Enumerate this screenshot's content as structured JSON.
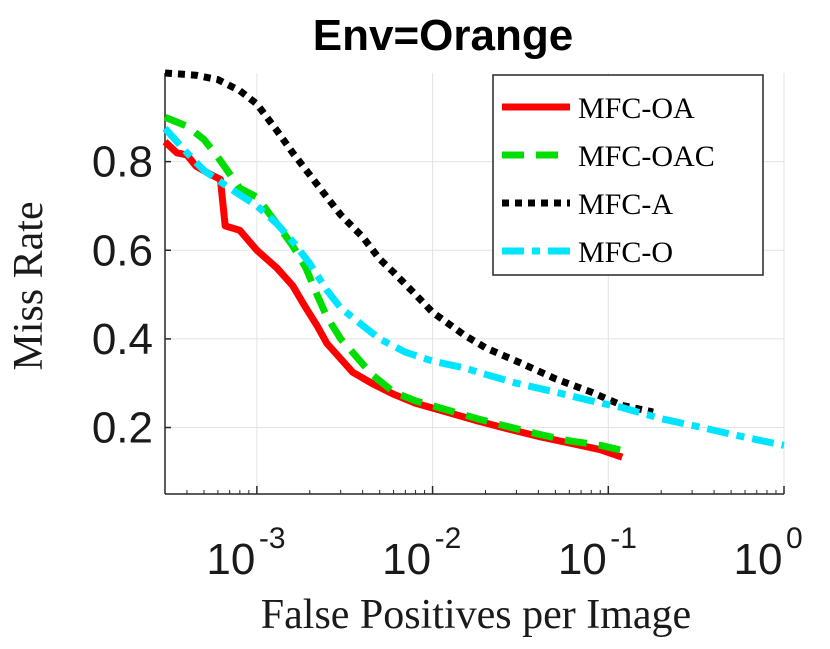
{
  "chart_data": {
    "type": "line",
    "title": "Env=Orange",
    "xlabel": "False Positives per Image",
    "ylabel": "Miss Rate",
    "xscale": "log",
    "xlim": [
      0.0003,
      1
    ],
    "ylim": [
      0.05,
      1.0
    ],
    "yticks": [
      {
        "value": 0.2,
        "label": "0.2"
      },
      {
        "value": 0.4,
        "label": "0.4"
      },
      {
        "value": 0.6,
        "label": "0.6"
      },
      {
        "value": 0.8,
        "label": "0.8"
      }
    ],
    "xticks": [
      {
        "value": 0.001,
        "base": "10",
        "exp": "-3"
      },
      {
        "value": 0.01,
        "base": "10",
        "exp": "-2"
      },
      {
        "value": 0.1,
        "base": "10",
        "exp": "-1"
      },
      {
        "value": 1,
        "base": "10",
        "exp": "0"
      }
    ],
    "grid": true,
    "legend_position": "top-right",
    "series": [
      {
        "name": "MFC-OA",
        "color": "#ff0000",
        "style": "solid",
        "points": [
          [
            0.0003,
            0.845
          ],
          [
            0.00035,
            0.82
          ],
          [
            0.0004,
            0.815
          ],
          [
            0.00045,
            0.79
          ],
          [
            0.00055,
            0.77
          ],
          [
            0.00062,
            0.76
          ],
          [
            0.00066,
            0.655
          ],
          [
            0.0008,
            0.645
          ],
          [
            0.001,
            0.6
          ],
          [
            0.0013,
            0.56
          ],
          [
            0.0016,
            0.52
          ],
          [
            0.0019,
            0.47
          ],
          [
            0.0022,
            0.43
          ],
          [
            0.0025,
            0.39
          ],
          [
            0.003,
            0.355
          ],
          [
            0.0035,
            0.325
          ],
          [
            0.0045,
            0.3
          ],
          [
            0.006,
            0.275
          ],
          [
            0.008,
            0.255
          ],
          [
            0.012,
            0.235
          ],
          [
            0.018,
            0.215
          ],
          [
            0.025,
            0.2
          ],
          [
            0.04,
            0.18
          ],
          [
            0.06,
            0.165
          ],
          [
            0.09,
            0.15
          ],
          [
            0.12,
            0.133
          ]
        ]
      },
      {
        "name": "MFC-OAC",
        "color": "#00dd00",
        "style": "dashed",
        "points": [
          [
            0.0003,
            0.9
          ],
          [
            0.0004,
            0.88
          ],
          [
            0.0005,
            0.85
          ],
          [
            0.0006,
            0.81
          ],
          [
            0.0008,
            0.74
          ],
          [
            0.001,
            0.72
          ],
          [
            0.0013,
            0.66
          ],
          [
            0.0016,
            0.61
          ],
          [
            0.0019,
            0.56
          ],
          [
            0.0022,
            0.5
          ],
          [
            0.0025,
            0.45
          ],
          [
            0.003,
            0.4
          ],
          [
            0.0035,
            0.37
          ],
          [
            0.0045,
            0.32
          ],
          [
            0.006,
            0.28
          ],
          [
            0.008,
            0.26
          ],
          [
            0.012,
            0.24
          ],
          [
            0.018,
            0.22
          ],
          [
            0.025,
            0.205
          ],
          [
            0.04,
            0.185
          ],
          [
            0.06,
            0.17
          ],
          [
            0.09,
            0.16
          ],
          [
            0.13,
            0.145
          ]
        ]
      },
      {
        "name": "MFC-A",
        "color": "#000000",
        "style": "dotted",
        "points": [
          [
            0.0003,
            1.0
          ],
          [
            0.00045,
            0.995
          ],
          [
            0.0006,
            0.985
          ],
          [
            0.0008,
            0.96
          ],
          [
            0.001,
            0.93
          ],
          [
            0.0013,
            0.87
          ],
          [
            0.0016,
            0.82
          ],
          [
            0.002,
            0.77
          ],
          [
            0.0025,
            0.72
          ],
          [
            0.003,
            0.68
          ],
          [
            0.004,
            0.63
          ],
          [
            0.005,
            0.58
          ],
          [
            0.006,
            0.55
          ],
          [
            0.008,
            0.5
          ],
          [
            0.01,
            0.46
          ],
          [
            0.015,
            0.41
          ],
          [
            0.02,
            0.38
          ],
          [
            0.03,
            0.35
          ],
          [
            0.05,
            0.31
          ],
          [
            0.08,
            0.28
          ],
          [
            0.12,
            0.25
          ],
          [
            0.18,
            0.235
          ]
        ]
      },
      {
        "name": "MFC-O",
        "color": "#00e5ff",
        "style": "dashdot",
        "points": [
          [
            0.0003,
            0.875
          ],
          [
            0.0004,
            0.82
          ],
          [
            0.0005,
            0.78
          ],
          [
            0.0007,
            0.74
          ],
          [
            0.001,
            0.7
          ],
          [
            0.0013,
            0.66
          ],
          [
            0.0016,
            0.62
          ],
          [
            0.002,
            0.57
          ],
          [
            0.0025,
            0.51
          ],
          [
            0.003,
            0.47
          ],
          [
            0.004,
            0.43
          ],
          [
            0.005,
            0.4
          ],
          [
            0.007,
            0.37
          ],
          [
            0.01,
            0.35
          ],
          [
            0.015,
            0.335
          ],
          [
            0.02,
            0.32
          ],
          [
            0.03,
            0.3
          ],
          [
            0.05,
            0.28
          ],
          [
            0.08,
            0.26
          ],
          [
            0.12,
            0.245
          ],
          [
            0.2,
            0.22
          ],
          [
            0.3,
            0.205
          ],
          [
            0.5,
            0.185
          ],
          [
            0.75,
            0.17
          ],
          [
            1.0,
            0.16
          ]
        ]
      }
    ]
  }
}
